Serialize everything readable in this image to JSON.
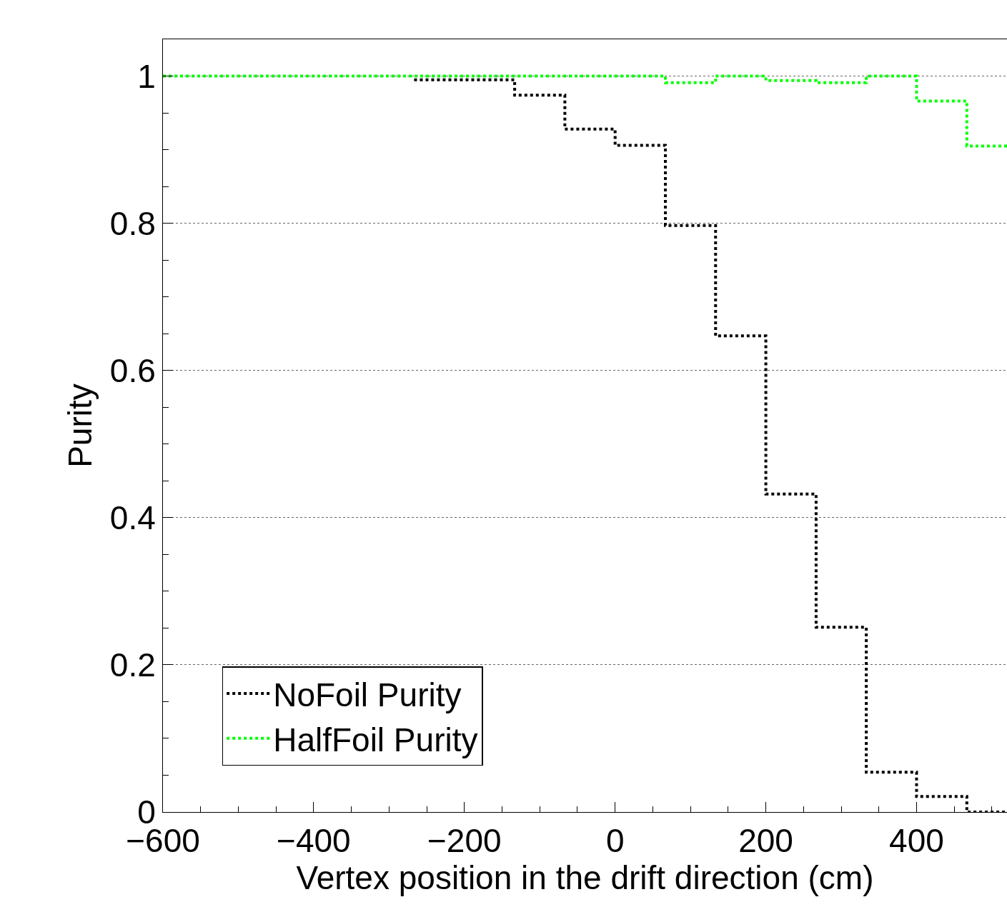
{
  "chart_data": {
    "type": "histogram",
    "xlabel": "Vertex position in the drift direction (cm)",
    "ylabel": "Purity",
    "bins": [
      -600,
      -533.3,
      -466.7,
      -400,
      -333.3,
      -266.7,
      -200,
      -133.3,
      -66.7,
      0,
      66.7,
      133.3,
      200,
      266.7,
      333.3,
      400,
      466.7,
      533.3
    ],
    "series": [
      {
        "name": "NoFoil Purity",
        "color": "#000000",
        "bins": [
          -266.7,
          -200,
          -133.3,
          -66.7,
          0,
          66.7,
          133.3,
          200,
          266.7,
          333.3,
          400,
          466.7,
          533.3
        ],
        "values": [
          0.995,
          0.995,
          0.974,
          0.928,
          0.906,
          0.797,
          0.647,
          0.432,
          0.251,
          0.054,
          0.021,
          0.0
        ]
      },
      {
        "name": "HalfFoil Purity",
        "color": "#00ff00",
        "values": [
          1,
          1,
          1,
          1,
          1,
          1,
          1,
          1,
          1,
          1,
          0.991,
          1,
          0.994,
          0.991,
          1,
          0.966,
          0.905
        ]
      }
    ],
    "xlim": [
      -600,
      520
    ],
    "ylim": [
      0,
      1.05
    ],
    "xticks": [
      {
        "value": -600,
        "label": "−600"
      },
      {
        "value": -400,
        "label": "−400"
      },
      {
        "value": -200,
        "label": "−200"
      },
      0,
      200,
      400
    ],
    "yticks": [
      0,
      0.2,
      0.4,
      0.6,
      0.8,
      1
    ],
    "grid": "y",
    "legend": "bottom left",
    "line_style": "dotted",
    "marker": "none"
  }
}
